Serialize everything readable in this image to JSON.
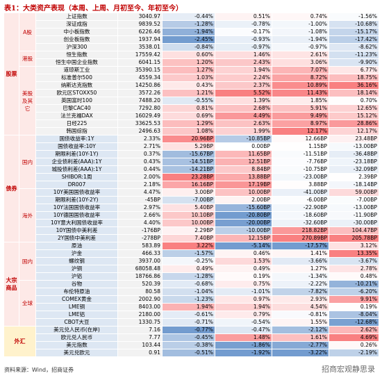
{
  "title": "表1：大类资产表现（本周、上周、月初至今、年初至今）",
  "sections": [
    {
      "label": "股票",
      "groups": [
        {
          "label": "A股",
          "rows": [
            [
              "上证指数",
              "3040.97",
              "-0.44%",
              "0.51%",
              "0.74%",
              "-1.56%"
            ],
            [
              "深证成指",
              "9839.52",
              "-1.28%",
              "-0.78%",
              "-1.00%",
              "-10.68%"
            ],
            [
              "中小板指数",
              "6226.46",
              "-1.94%",
              "-0.17%",
              "-1.08%",
              "-15.17%"
            ],
            [
              "创业板指数",
              "1937.94",
              "-2.45%",
              "-0.93%",
              "-1.94%",
              "-17.42%"
            ],
            [
              "沪深300",
              "3538.01",
              "-0.84%",
              "-0.97%",
              "-0.97%",
              "-8.62%"
            ]
          ]
        },
        {
          "label": "港股",
          "rows": [
            [
              "恒生指数",
              "17559.42",
              "0.60%",
              "1.46%",
              "2.61%",
              "-11.23%"
            ],
            [
              "恒生中国企业指数",
              "6041.15",
              "1.20%",
              "2.43%",
              "3.06%",
              "-9.90%"
            ]
          ]
        },
        {
          "label": "美股及其它",
          "rows": [
            [
              "道琼斯工业",
              "35390.15",
              "1.27%",
              "1.94%",
              "7.07%",
              "6.77%"
            ],
            [
              "标准普尔500",
              "4559.34",
              "1.03%",
              "2.24%",
              "8.72%",
              "18.75%"
            ],
            [
              "纳斯达克指数",
              "14250.86",
              "0.43%",
              "2.37%",
              "10.89%",
              "36.16%"
            ],
            [
              "欧元区STOXX50",
              "3572.26",
              "1.21%",
              "5.52%",
              "11.43%",
              "18.14%"
            ],
            [
              "英国富时100",
              "7488.20",
              "-0.55%",
              "1.39%",
              "1.85%",
              "0.70%"
            ],
            [
              "巴黎CAC40",
              "7292.80",
              "0.81%",
              "2.68%",
              "5.91%",
              "12.65%"
            ],
            [
              "法兰克福DAX",
              "16029.49",
              "0.69%",
              "4.49%",
              "9.49%",
              "15.12%"
            ],
            [
              "日经225",
              "33625.53",
              "1.29%",
              "2.63%",
              "8.97%",
              "28.86%"
            ],
            [
              "韩国综指",
              "2496.63",
              "1.08%",
              "1.99%",
              "12.17%",
              "12.17%"
            ]
          ]
        }
      ]
    },
    {
      "label": "债券",
      "groups": [
        {
          "label": "国内",
          "rows": [
            [
              "国债收益率:1Y",
              "2.33%",
              "20.96BP",
              "-10.85BP",
              "12.66BP",
              "23.48BP"
            ],
            [
              "国债收益率:10Y",
              "2.71%",
              "5.29BP",
              "0.00BP",
              "1.15BP",
              "-13.00BP"
            ],
            [
              "期限利差(10Y-1Y)",
              "0.37%",
              "-15.67BP",
              "11.65BP",
              "-11.51BP",
              "-36.48BP"
            ],
            [
              "企业债利差(AAA):1Y",
              "0.43%",
              "-14.51BP",
              "12.51BP",
              "-7.76BP",
              "-23.18BP"
            ],
            [
              "城投债利差(AAA):1Y",
              "0.44%",
              "-14.21BP",
              "8.84BP",
              "-10.75BP",
              "-32.09BP"
            ],
            [
              "SHIBOR:1周",
              "2.00%",
              "23.28BP",
              "13.88BP",
              "-23.00BP",
              "2.39BP"
            ],
            [
              "DR007",
              "2.18%",
              "16.16BP",
              "17.19BP",
              "3.88BP",
              "-18.14BP"
            ]
          ]
        },
        {
          "label": "海外",
          "rows": [
            [
              "10Y美国国债收益率",
              "4.47%",
              "3.00BP",
              "10.00BP",
              "-41.00BP",
              "59.00BP"
            ],
            [
              "期限利差(10Y-2Y)",
              "-45BP",
              "-7.00BP",
              "2.00BP",
              "-6.00BP",
              "-7.00BP"
            ],
            [
              "10Y法国国债收益率",
              "2.97%",
              "5.40BP",
              "-15.60BP",
              "-22.90BP",
              "-13.00BP"
            ],
            [
              "10Y德国国债收益率",
              "2.66%",
              "10.10BP",
              "-20.80BP",
              "-18.60BP",
              "-11.90BP"
            ],
            [
              "10Y意大利国债收益率",
              "4.40%",
              "10.00BP",
              "-20.00BP",
              "-32.60BP",
              "-30.00BP"
            ],
            [
              "10Y国债中美利差",
              "-176BP",
              "2.29BP",
              "-10.00BP",
              "218.82BP",
              "104.47BP"
            ],
            [
              "2Y国债中美利差",
              "-278BP",
              "7.40BP",
              "12.15BP",
              "270.89BP",
              "205.78BP"
            ]
          ]
        }
      ]
    },
    {
      "label": "大宗商品",
      "groups": [
        {
          "label": "国内",
          "rows": [
            [
              "原油",
              "583.89",
              "3.22%",
              "-5.14%",
              "-17.57%",
              "3.12%"
            ],
            [
              "沪金",
              "466.33",
              "-1.57%",
              "0.46%",
              "1.41%",
              "13.35%"
            ],
            [
              "螺纹钢",
              "3937.00",
              "-0.25%",
              "1.53%",
              "-3.66%",
              "-3.67%"
            ],
            [
              "沪铜",
              "68058.48",
              "0.49%",
              "0.49%",
              "1.27%",
              "2.78%"
            ],
            [
              "沪铝",
              "18766.86",
              "-1.28%",
              "0.19%",
              "-1.34%",
              "0.48%"
            ]
          ]
        },
        {
          "label": "全球",
          "rows": [
            [
              "谷物",
              "520.39",
              "-0.68%",
              "0.75%",
              "-2.22%",
              "-10.21%"
            ],
            [
              "布伦特原油",
              "80.58",
              "-1.04%",
              "-1.01%",
              "-7.82%",
              "-6.20%"
            ],
            [
              "COMEX黄金",
              "2002.90",
              "-1.23%",
              "0.97%",
              "2.93%",
              "9.91%"
            ],
            [
              "LME铜",
              "8403.00",
              "1.94%",
              "1.94%",
              "4.54%",
              "0.19%"
            ],
            [
              "LME铝",
              "2180.00",
              "-0.61%",
              "0.79%",
              "-0.81%",
              "-8.04%"
            ],
            [
              "CBOT大豆",
              "1330.75",
              "-0.71%",
              "-0.54%",
              "1.55%",
              "-12.68%"
            ]
          ]
        }
      ]
    },
    {
      "label": "外汇",
      "groups": [
        {
          "label": null,
          "rows": [
            [
              "美元兑人民币(在岸)",
              "7.16",
              "-0.77%",
              "-0.47%",
              "-2.12%",
              "2.62%"
            ],
            [
              "欧元兑人民币",
              "7.77",
              "-0.45%",
              "1.48%",
              "1.61%",
              "4.69%"
            ],
            [
              "美元指数",
              "103.44",
              "-0.38%",
              "-1.86%",
              "-2.77%",
              "0.26%"
            ],
            [
              "美元兑欧元",
              "0.91",
              "-0.51%",
              "-1.92%",
              "-3.22%",
              "-2.19%"
            ]
          ]
        }
      ]
    }
  ],
  "source": "资料来源：Wind，招商证券",
  "watermark": "招商宏观静思录"
}
